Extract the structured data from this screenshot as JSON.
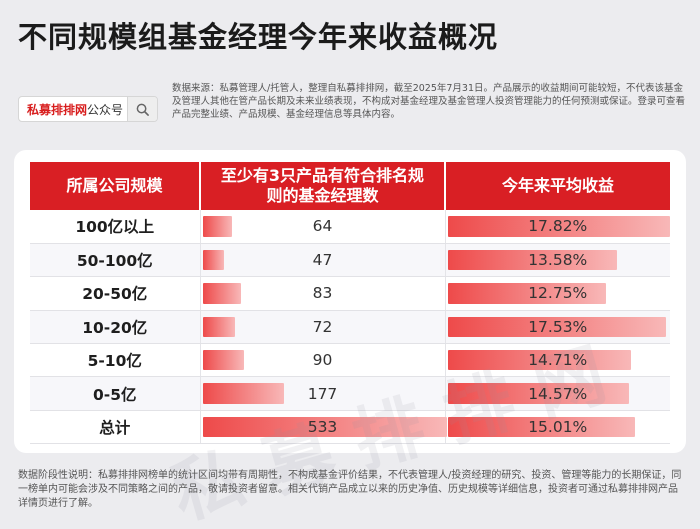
{
  "title": "不同规模组基金经理今年来收益概况",
  "search": {
    "brand": "私募排排网",
    "suffix": "公众号",
    "icon": "search-icon"
  },
  "note": "数据来源：私募管理人/托管人，整理自私募排排网，截至2025年7月31日。产品展示的收益期间可能较短，不代表该基金及管理人其他在管产品长期及未来业绩表现，不构成对基金经理及基金管理人投资管理能力的任何预测或保证。登录可查看产品完整业绩、产品规模、基金经理信息等具体内容。",
  "table": {
    "headers": [
      "所属公司规模",
      "至少有3只产品有符合排名规则的基金经理数",
      "今年来平均收益"
    ],
    "rows": [
      {
        "label": "100亿以上",
        "count": "64",
        "ret": "17.82%"
      },
      {
        "label": "50-100亿",
        "count": "47",
        "ret": "13.58%"
      },
      {
        "label": "20-50亿",
        "count": "83",
        "ret": "12.75%"
      },
      {
        "label": "10-20亿",
        "count": "72",
        "ret": "17.53%"
      },
      {
        "label": "5-10亿",
        "count": "90",
        "ret": "14.71%"
      },
      {
        "label": "0-5亿",
        "count": "177",
        "ret": "14.57%"
      },
      {
        "label": "总计",
        "count": "533",
        "ret": "15.01%"
      }
    ]
  },
  "watermark": "私募排排网",
  "footer": "数据阶段性说明：私募排排网榜单的统计区间均带有周期性，不构成基金评价结果，不代表管理人/投资经理的研究、投资、管理等能力的长期保证，同一榜单内可能会涉及不同策略之间的产品，敬请投资者留意。相关代销产品成立以来的历史净值、历史规模等详细信息，投资者可通过私募排排网产品详情页进行了解。",
  "colors": {
    "header_red": "#d91f24",
    "bar_start": "#ee4a4a",
    "bar_end": "#f8b8b8"
  }
}
